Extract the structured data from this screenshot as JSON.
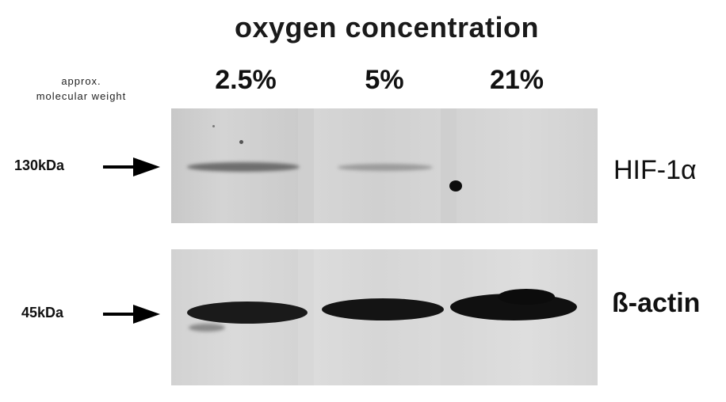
{
  "figure": {
    "title": "oxygen concentration",
    "concentrations": [
      "2.5%",
      "5%",
      "21%"
    ],
    "mw_note_line1": "approx.",
    "mw_note_line2": "molecular weight",
    "blots": [
      {
        "marker": "130kDa",
        "protein": "HIF-1α"
      },
      {
        "marker": "45kDa",
        "protein": "ß-actin"
      }
    ]
  },
  "colors": {
    "background": "#ffffff",
    "membrane_top": "#d0d0d0",
    "membrane_bottom": "#d6d6d6",
    "band_dark": "#141414",
    "text": "#111111"
  }
}
